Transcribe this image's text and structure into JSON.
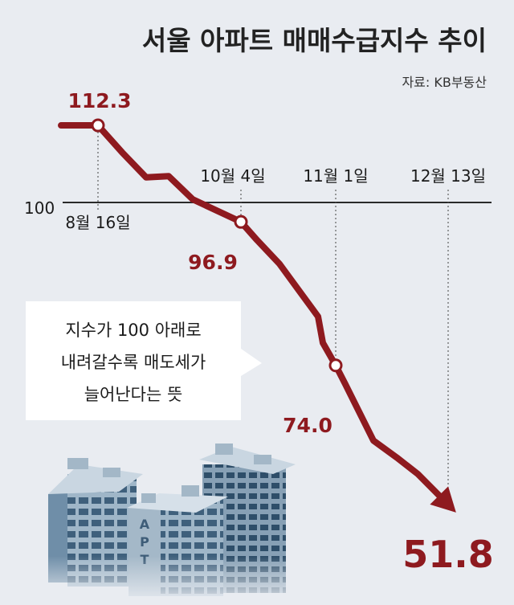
{
  "chart_data": {
    "type": "line",
    "title": "서울 아파트 매매수급지수 추이",
    "source": "자료: KB부동산",
    "baseline": {
      "value": 100,
      "label": "100"
    },
    "x": [
      0,
      1,
      2,
      3,
      4,
      5,
      6,
      7,
      8,
      9,
      10,
      11,
      12,
      13,
      14,
      15,
      16,
      17,
      18
    ],
    "values": [
      112.3,
      112.3,
      112.3,
      108.0,
      104.0,
      104.2,
      100.5,
      96.9,
      94.0,
      90.2,
      86.0,
      81.8,
      77.6,
      74.0,
      71.0,
      62.0,
      59.3,
      56.7,
      51.8
    ],
    "markers": [
      {
        "index": 2,
        "label": "112.3",
        "date": "8월 16일"
      },
      {
        "index": 7,
        "label": "96.9",
        "date": "10월 4일"
      },
      {
        "index": 13,
        "label": "74.0",
        "date": "11월 1일"
      },
      {
        "index": 18,
        "label": "51.8",
        "date": "12월 13일"
      }
    ],
    "line_color": "#8e1a1f",
    "annotation": [
      "지수가 100 아래로",
      "내려갈수록 매도세가",
      "늘어난다는 뜻"
    ]
  },
  "illustration": {
    "building_sign": "APT"
  },
  "colors": {
    "background": "#e9ecf1",
    "line": "#8e1a1f",
    "building": "#5c7f9b"
  }
}
